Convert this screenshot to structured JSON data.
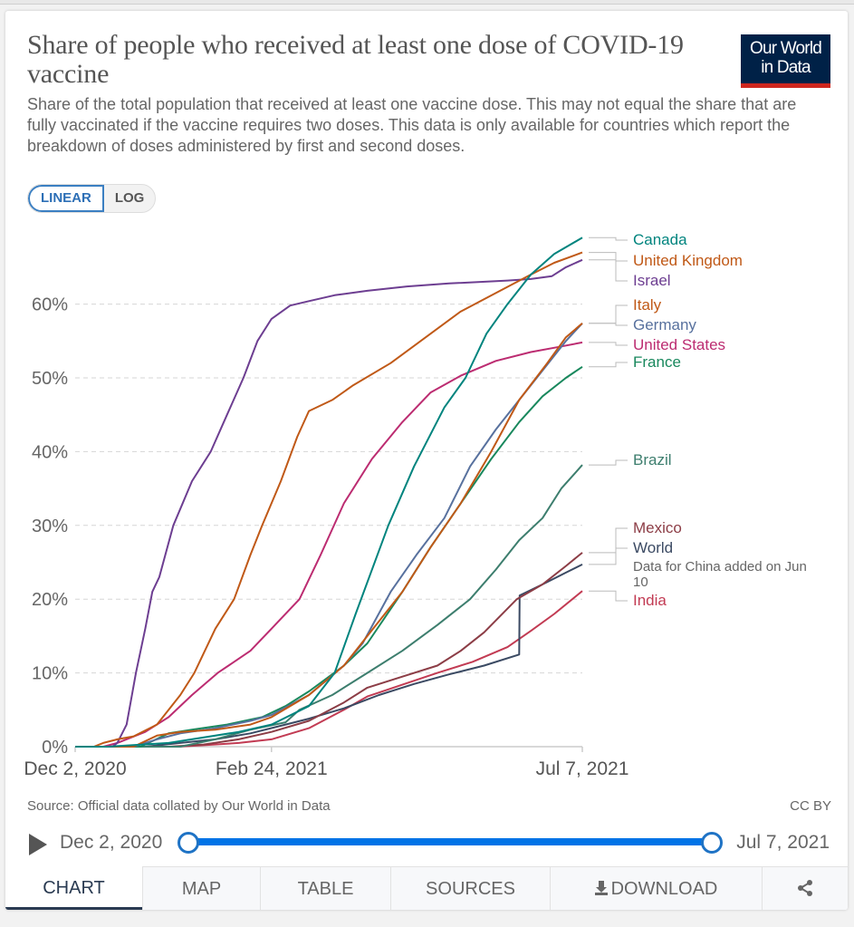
{
  "header": {
    "title": "Share of people who received at least one dose of COVID-19 vaccine",
    "subtitle": "Share of the total population that received at least one vaccine dose. This may not equal the share that are fully vaccinated if the vaccine requires two doses. This data is only available for countries which report the breakdown of doses administered by first and second doses.",
    "logo_line1": "Our World",
    "logo_line2": "in Data",
    "logo_color": "#002147",
    "logo_accent": "#ce261e"
  },
  "scale_toggle": {
    "options": [
      "LINEAR",
      "LOG"
    ],
    "selected": "LINEAR"
  },
  "footer": {
    "source": "Source: Official data collated by Our World in Data",
    "license": "CC BY"
  },
  "timeline": {
    "start_label": "Dec 2, 2020",
    "end_label": "Jul 7, 2021",
    "play_icon": "play-icon"
  },
  "tabs": [
    {
      "label": "CHART",
      "active": true
    },
    {
      "label": "MAP",
      "active": false
    },
    {
      "label": "TABLE",
      "active": false
    },
    {
      "label": "SOURCES",
      "active": false
    },
    {
      "label": "DOWNLOAD",
      "active": false,
      "icon": "download-icon"
    },
    {
      "label": "",
      "active": false,
      "icon": "share-icon"
    }
  ],
  "chart_data": {
    "type": "line",
    "title": "Share of people who received at least one dose of COVID-19 vaccine",
    "xlabel": "",
    "ylabel": "",
    "x_unit": "days since Dec 2, 2020",
    "xlim": [
      0,
      217
    ],
    "ylim": [
      0,
      70
    ],
    "x_ticks": [
      {
        "day": 0,
        "label": "Dec 2, 2020"
      },
      {
        "day": 84,
        "label": "Feb 24, 2021"
      },
      {
        "day": 217,
        "label": "Jul 7, 2021"
      }
    ],
    "y_ticks": [
      {
        "value": 0,
        "label": "0%"
      },
      {
        "value": 10,
        "label": "10%"
      },
      {
        "value": 20,
        "label": "20%"
      },
      {
        "value": 30,
        "label": "30%"
      },
      {
        "value": 40,
        "label": "40%"
      },
      {
        "value": 50,
        "label": "50%"
      },
      {
        "value": 60,
        "label": "60%"
      }
    ],
    "grid": true,
    "legend": "right (inline end labels)",
    "series": [
      {
        "name": "Canada",
        "color": "#00847e",
        "label_value": 69.0,
        "points": [
          [
            0,
            0
          ],
          [
            14,
            0
          ],
          [
            40,
            0.5
          ],
          [
            70,
            2
          ],
          [
            84,
            3
          ],
          [
            100,
            5.5
          ],
          [
            111,
            10
          ],
          [
            120,
            18
          ],
          [
            134,
            30
          ],
          [
            145,
            38
          ],
          [
            158,
            46
          ],
          [
            167,
            50
          ],
          [
            176,
            56
          ],
          [
            185,
            60
          ],
          [
            195,
            64
          ],
          [
            205,
            66.8
          ],
          [
            217,
            69.0
          ]
        ]
      },
      {
        "name": "United Kingdom",
        "color": "#c15065",
        "line_color": "#c05917",
        "label_value": 67.0,
        "points": [
          [
            0,
            0
          ],
          [
            8,
            0
          ],
          [
            12,
            0.5
          ],
          [
            18,
            1.0
          ],
          [
            25,
            1.4
          ],
          [
            35,
            3
          ],
          [
            45,
            7
          ],
          [
            51,
            10
          ],
          [
            60,
            16
          ],
          [
            68,
            20
          ],
          [
            75,
            26
          ],
          [
            80,
            30
          ],
          [
            88,
            36
          ],
          [
            95,
            42
          ],
          [
            100,
            45.5
          ],
          [
            110,
            47
          ],
          [
            119,
            49
          ],
          [
            135,
            52
          ],
          [
            150,
            55.5
          ],
          [
            165,
            59
          ],
          [
            183,
            62
          ],
          [
            195,
            64
          ],
          [
            205,
            65.6
          ],
          [
            217,
            67.0
          ]
        ]
      },
      {
        "name": "Israel",
        "color": "#6d3e91",
        "label_value": 66.0,
        "points": [
          [
            0,
            0
          ],
          [
            16,
            0
          ],
          [
            18,
            0.5
          ],
          [
            22,
            3
          ],
          [
            26,
            10
          ],
          [
            30,
            16
          ],
          [
            33,
            21
          ],
          [
            36,
            23
          ],
          [
            42,
            30
          ],
          [
            50,
            36
          ],
          [
            58,
            40
          ],
          [
            65,
            45
          ],
          [
            72,
            50
          ],
          [
            78,
            55
          ],
          [
            84,
            58
          ],
          [
            92,
            59.8
          ],
          [
            100,
            60.4
          ],
          [
            111,
            61.2
          ],
          [
            125,
            61.8
          ],
          [
            142,
            62.4
          ],
          [
            160,
            62.8
          ],
          [
            185,
            63.2
          ],
          [
            195,
            63.4
          ],
          [
            204,
            63.8
          ],
          [
            210,
            65
          ],
          [
            217,
            66.0
          ]
        ]
      },
      {
        "name": "Italy",
        "color": "#c05917",
        "label_value": 57.4,
        "points": [
          [
            0,
            0
          ],
          [
            25,
            0
          ],
          [
            35,
            1.5
          ],
          [
            45,
            2
          ],
          [
            60,
            2.3
          ],
          [
            75,
            3
          ],
          [
            84,
            4
          ],
          [
            100,
            7
          ],
          [
            115,
            11
          ],
          [
            125,
            15
          ],
          [
            140,
            21
          ],
          [
            152,
            27
          ],
          [
            165,
            33
          ],
          [
            178,
            40
          ],
          [
            190,
            47
          ],
          [
            202,
            52
          ],
          [
            210,
            55.5
          ],
          [
            217,
            57.4
          ]
        ]
      },
      {
        "name": "Germany",
        "color": "#58719e",
        "label_value": 57.4,
        "points": [
          [
            0,
            0
          ],
          [
            25,
            0
          ],
          [
            35,
            1.0
          ],
          [
            45,
            1.8
          ],
          [
            60,
            2.5
          ],
          [
            75,
            3.5
          ],
          [
            84,
            4.3
          ],
          [
            100,
            7
          ],
          [
            115,
            11
          ],
          [
            123,
            14
          ],
          [
            135,
            21
          ],
          [
            146,
            26
          ],
          [
            158,
            31
          ],
          [
            169,
            38
          ],
          [
            180,
            43
          ],
          [
            190,
            47
          ],
          [
            200,
            51
          ],
          [
            210,
            55
          ],
          [
            217,
            57.4
          ]
        ]
      },
      {
        "name": "United States",
        "color": "#bc2c71",
        "label_value": 54.8,
        "points": [
          [
            0,
            0
          ],
          [
            12,
            0
          ],
          [
            18,
            0.5
          ],
          [
            30,
            2
          ],
          [
            40,
            4
          ],
          [
            50,
            7
          ],
          [
            61,
            10
          ],
          [
            75,
            13
          ],
          [
            84,
            16
          ],
          [
            96,
            20
          ],
          [
            105,
            26
          ],
          [
            115,
            33
          ],
          [
            127,
            39
          ],
          [
            140,
            44
          ],
          [
            152,
            48
          ],
          [
            165,
            50.3
          ],
          [
            180,
            52.3
          ],
          [
            195,
            53.5
          ],
          [
            207,
            54.2
          ],
          [
            217,
            54.8
          ]
        ]
      },
      {
        "name": "France",
        "color": "#19885d",
        "label_value": 51.5,
        "points": [
          [
            0,
            0
          ],
          [
            28,
            0
          ],
          [
            40,
            1.8
          ],
          [
            50,
            2.3
          ],
          [
            65,
            3
          ],
          [
            80,
            4
          ],
          [
            90,
            5.5
          ],
          [
            100,
            7.5
          ],
          [
            115,
            11
          ],
          [
            125,
            14
          ],
          [
            140,
            21
          ],
          [
            152,
            27
          ],
          [
            165,
            33
          ],
          [
            178,
            39
          ],
          [
            190,
            44
          ],
          [
            200,
            47.5
          ],
          [
            210,
            50
          ],
          [
            217,
            51.5
          ]
        ]
      },
      {
        "name": "Brazil",
        "color": "#3d7e6e",
        "label_value": 38.2,
        "points": [
          [
            0,
            0
          ],
          [
            45,
            0
          ],
          [
            60,
            1
          ],
          [
            75,
            2.3
          ],
          [
            90,
            3.3
          ],
          [
            96,
            5
          ],
          [
            110,
            7
          ],
          [
            125,
            10
          ],
          [
            140,
            13
          ],
          [
            155,
            16.5
          ],
          [
            169,
            20
          ],
          [
            180,
            24
          ],
          [
            190,
            28
          ],
          [
            200,
            31
          ],
          [
            208,
            35
          ],
          [
            217,
            38.2
          ]
        ]
      },
      {
        "name": "Mexico",
        "color": "#8c3d46",
        "label_value": 26.3,
        "points": [
          [
            0,
            0
          ],
          [
            40,
            0
          ],
          [
            55,
            0.3
          ],
          [
            70,
            1
          ],
          [
            84,
            2
          ],
          [
            100,
            3.5
          ],
          [
            115,
            6
          ],
          [
            125,
            8
          ],
          [
            140,
            9.5
          ],
          [
            155,
            11
          ],
          [
            165,
            13
          ],
          [
            175,
            15.5
          ],
          [
            189,
            20
          ],
          [
            200,
            22
          ],
          [
            210,
            24.5
          ],
          [
            217,
            26.3
          ]
        ]
      },
      {
        "name": "World",
        "color": "#3b4a63",
        "label_value": 24.7,
        "note": "Data for China added on Jun 10",
        "points": [
          [
            0,
            0
          ],
          [
            30,
            0
          ],
          [
            45,
            0.5
          ],
          [
            60,
            1
          ],
          [
            75,
            1.8
          ],
          [
            90,
            3
          ],
          [
            100,
            3.8
          ],
          [
            115,
            5.2
          ],
          [
            130,
            7
          ],
          [
            145,
            8.5
          ],
          [
            160,
            9.8
          ],
          [
            175,
            11
          ],
          [
            190,
            12.5
          ],
          [
            190.2,
            20.5
          ],
          [
            200,
            22
          ],
          [
            210,
            23.6
          ],
          [
            217,
            24.7
          ]
        ]
      },
      {
        "name": "India",
        "color": "#c23b53",
        "label_value": 21.1,
        "points": [
          [
            0,
            0
          ],
          [
            44,
            0
          ],
          [
            55,
            0.2
          ],
          [
            70,
            0.5
          ],
          [
            84,
            1
          ],
          [
            100,
            2.5
          ],
          [
            115,
            5
          ],
          [
            125,
            6.8
          ],
          [
            140,
            8.4
          ],
          [
            155,
            10
          ],
          [
            170,
            11.5
          ],
          [
            185,
            13.5
          ],
          [
            195,
            15.7
          ],
          [
            205,
            18
          ],
          [
            217,
            21.1
          ]
        ]
      }
    ],
    "label_order": [
      "Canada",
      "United Kingdom",
      "Israel",
      "Italy",
      "Germany",
      "United States",
      "France",
      "Brazil",
      "Mexico",
      "World",
      "India"
    ]
  }
}
